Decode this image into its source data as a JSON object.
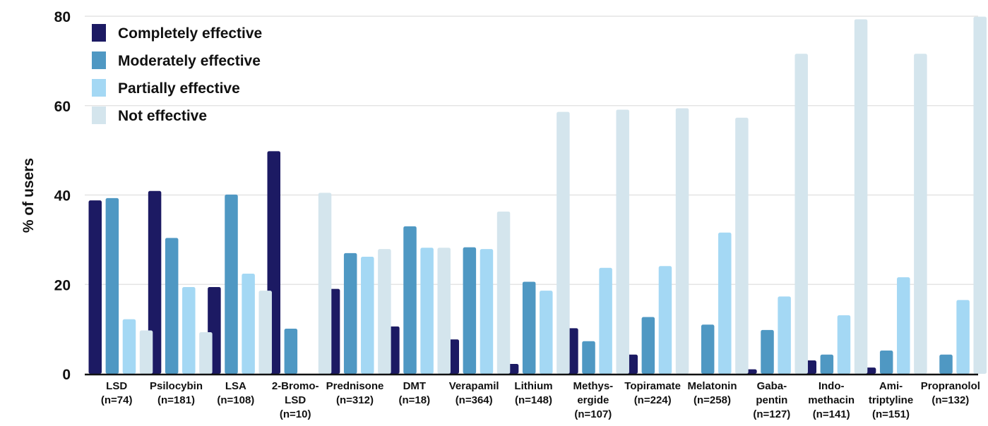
{
  "chart_data": {
    "type": "bar",
    "ylabel": "% of users",
    "ylim": [
      0,
      80
    ],
    "yticks": [
      0,
      20,
      40,
      60,
      80
    ],
    "grid": true,
    "legend_position": "top-left",
    "categories": [
      [
        "LSD",
        "(n=74)"
      ],
      [
        "Psilocybin",
        "(n=181)"
      ],
      [
        "LSA",
        "(n=108)"
      ],
      [
        "2-Bromo-",
        "LSD",
        "(n=10)"
      ],
      [
        "Prednisone",
        "(n=312)"
      ],
      [
        "DMT",
        "(n=18)"
      ],
      [
        "Verapamil",
        "(n=364)"
      ],
      [
        "Lithium",
        "(n=148)"
      ],
      [
        "Methys-",
        "ergide",
        "(n=107)"
      ],
      [
        "Topiramate",
        "(n=224)"
      ],
      [
        "Melatonin",
        "(n=258)"
      ],
      [
        "Gaba-",
        "pentin",
        "(n=127)"
      ],
      [
        "Indo-",
        "methacin",
        "(n=141)"
      ],
      [
        "Ami-",
        "triptyline",
        "(n=151)"
      ],
      [
        "Propranolol",
        "(n=132)"
      ]
    ],
    "series": [
      {
        "name": "Completely effective",
        "color": "#1c1a63",
        "values": [
          38.8,
          40.9,
          19.4,
          49.8,
          19.0,
          10.6,
          7.7,
          2.2,
          10.2,
          4.3,
          0,
          1.0,
          3.0,
          1.4,
          0
        ]
      },
      {
        "name": "Moderately effective",
        "color": "#4f98c3",
        "values": [
          39.3,
          30.4,
          40.1,
          10.1,
          27.0,
          33.0,
          28.3,
          20.6,
          7.3,
          12.7,
          11.0,
          9.8,
          4.3,
          5.2,
          4.3
        ]
      },
      {
        "name": "Partially effective",
        "color": "#a4d8f4",
        "values": [
          12.2,
          19.4,
          22.4,
          0,
          26.2,
          28.2,
          27.9,
          18.6,
          23.7,
          24.1,
          31.6,
          17.3,
          13.1,
          21.6,
          16.5
        ]
      },
      {
        "name": "Not effective",
        "color": "#d4e5ed",
        "values": [
          9.7,
          9.3,
          18.6,
          40.5,
          27.9,
          28.2,
          36.3,
          58.6,
          59.1,
          59.4,
          57.3,
          71.6,
          79.3,
          71.6,
          79.9
        ]
      }
    ]
  }
}
